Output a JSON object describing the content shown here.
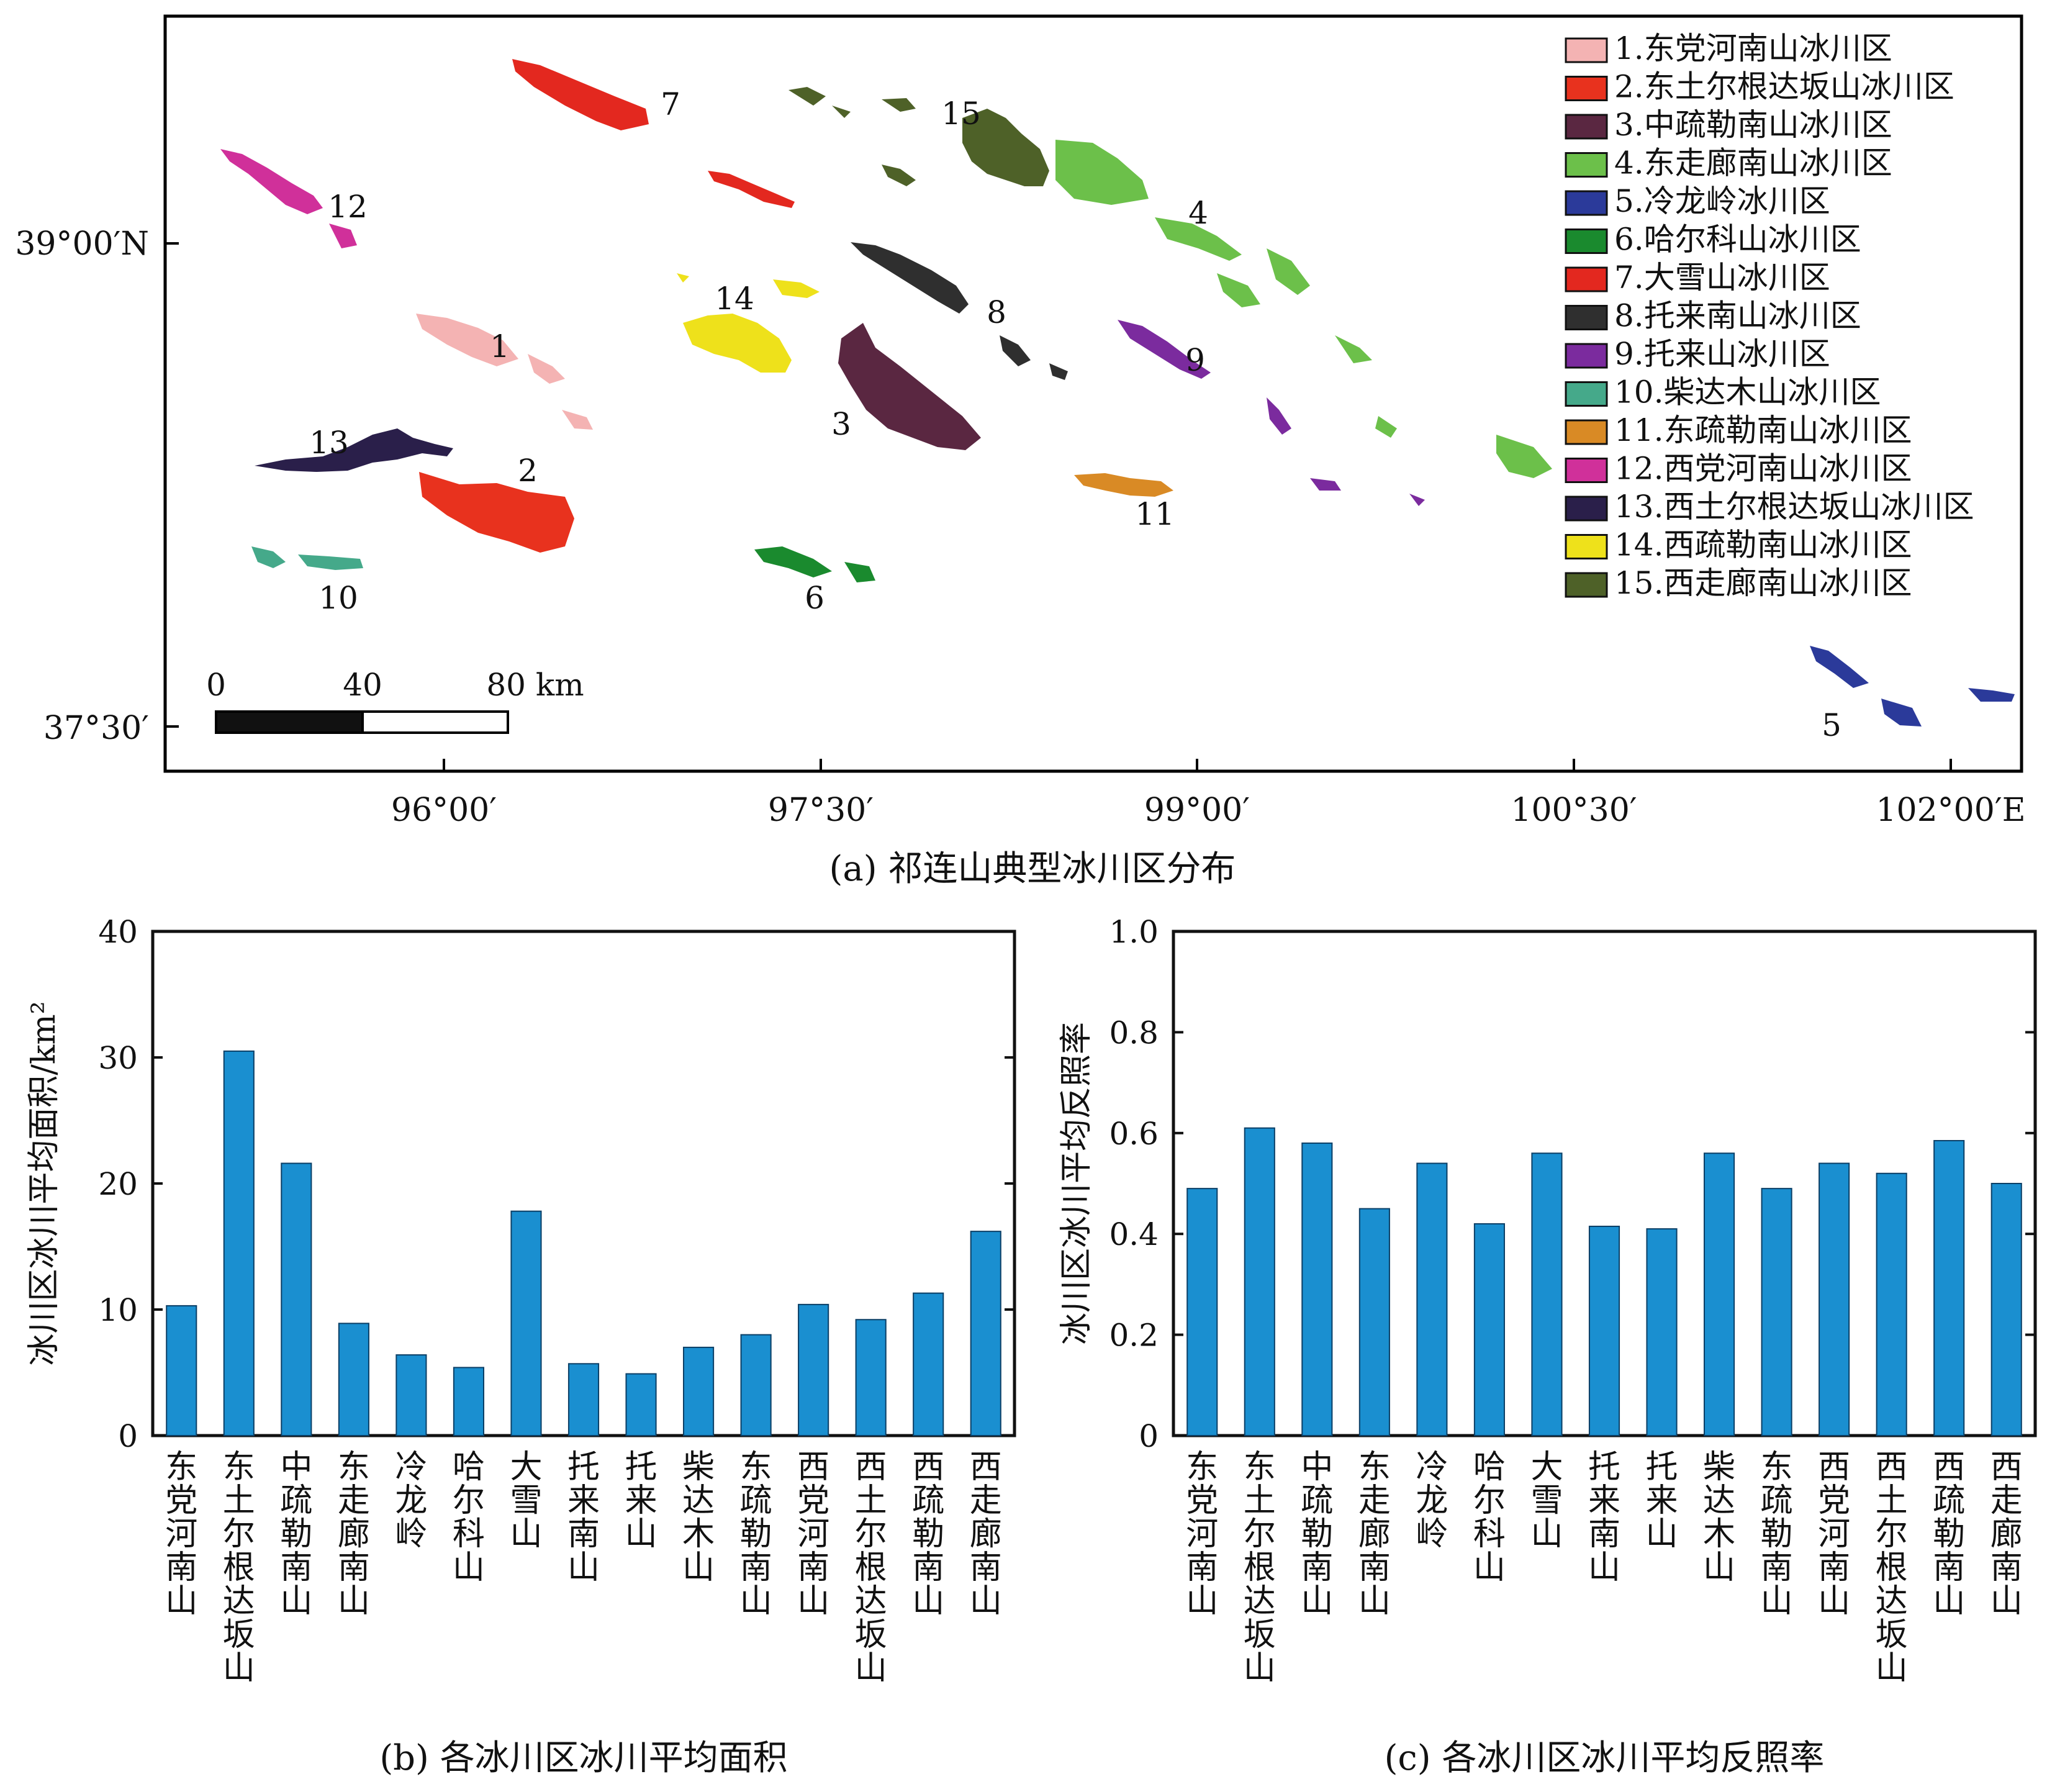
{
  "map": {
    "caption": "(a) 祁连山典型冰川区分布",
    "lon_ticks": [
      "96°00′",
      "97°30′",
      "99°00′",
      "100°30′",
      "102°00′E"
    ],
    "lat_ticks": [
      "39°00′N",
      "37°30′"
    ],
    "scale_bar": {
      "labels": [
        "0",
        "40",
        "80 km"
      ]
    },
    "legend": [
      {
        "label": "1.东党河南山冰川区",
        "color": "#f4b3b3"
      },
      {
        "label": "2.东土尔根达坂山冰川区",
        "color": "#e8321e"
      },
      {
        "label": "3.中疏勒南山冰川区",
        "color": "#5a2741"
      },
      {
        "label": "4.东走廊南山冰川区",
        "color": "#6cc04a"
      },
      {
        "label": "5.冷龙岭冰川区",
        "color": "#2b3a9a"
      },
      {
        "label": "6.哈尔科山冰川区",
        "color": "#1a8a2e"
      },
      {
        "label": "7.大雪山冰川区",
        "color": "#e3281f"
      },
      {
        "label": "8.托来南山冰川区",
        "color": "#2f2f2f"
      },
      {
        "label": "9.托来山冰川区",
        "color": "#7b2b9e"
      },
      {
        "label": "10.柴达木山冰川区",
        "color": "#45a98a"
      },
      {
        "label": "11.东疏勒南山冰川区",
        "color": "#d98a25"
      },
      {
        "label": "12.西党河南山冰川区",
        "color": "#d0309a"
      },
      {
        "label": "13.西土尔根达坂山冰川区",
        "color": "#2a1f4a"
      },
      {
        "label": "14.西疏勒南山冰川区",
        "color": "#eee11b"
      },
      {
        "label": "15.西走廊南山冰川区",
        "color": "#4e6128"
      }
    ],
    "region_numbers": [
      "1",
      "2",
      "3",
      "4",
      "5",
      "6",
      "7",
      "8",
      "9",
      "10",
      "11",
      "12",
      "13",
      "14",
      "15"
    ]
  },
  "chart_data": [
    {
      "type": "bar",
      "title": "(b) 各冰川区冰川平均面积",
      "ylabel": "冰川区冰川平均面积/km²",
      "categories": [
        "东党河南山",
        "东土尔根达坂山",
        "中疏勒南山",
        "东走廊南山",
        "冷龙岭",
        "哈尔科山",
        "大雪山",
        "托来南山",
        "托来山",
        "柴达木山",
        "东疏勒南山",
        "西党河南山",
        "西土尔根达坂山",
        "西疏勒南山",
        "西走廊南山"
      ],
      "values": [
        10.3,
        30.5,
        21.6,
        8.9,
        6.4,
        5.4,
        17.8,
        5.7,
        4.9,
        7.0,
        8.0,
        10.4,
        9.2,
        11.3,
        16.2
      ],
      "ylim": [
        0,
        40
      ],
      "yticks": [
        "0",
        "10",
        "20",
        "30",
        "40"
      ],
      "bar_color": "#1a8fd0"
    },
    {
      "type": "bar",
      "title": "(c) 各冰川区冰川平均反照率",
      "ylabel": "冰川区冰川平均反照率",
      "categories": [
        "东党河南山",
        "东土尔根达坂山",
        "中疏勒南山",
        "东走廊南山",
        "冷龙岭",
        "哈尔科山",
        "大雪山",
        "托来南山",
        "托来山",
        "柴达木山",
        "东疏勒南山",
        "西党河南山",
        "西土尔根达坂山",
        "西疏勒南山",
        "西走廊南山"
      ],
      "values": [
        0.49,
        0.61,
        0.58,
        0.45,
        0.54,
        0.42,
        0.56,
        0.415,
        0.41,
        0.56,
        0.49,
        0.54,
        0.52,
        0.585,
        0.5
      ],
      "ylim": [
        0,
        1.0
      ],
      "yticks": [
        "0",
        "0.2",
        "0.4",
        "0.6",
        "0.8",
        "1.0"
      ],
      "bar_color": "#1a8fd0"
    }
  ]
}
